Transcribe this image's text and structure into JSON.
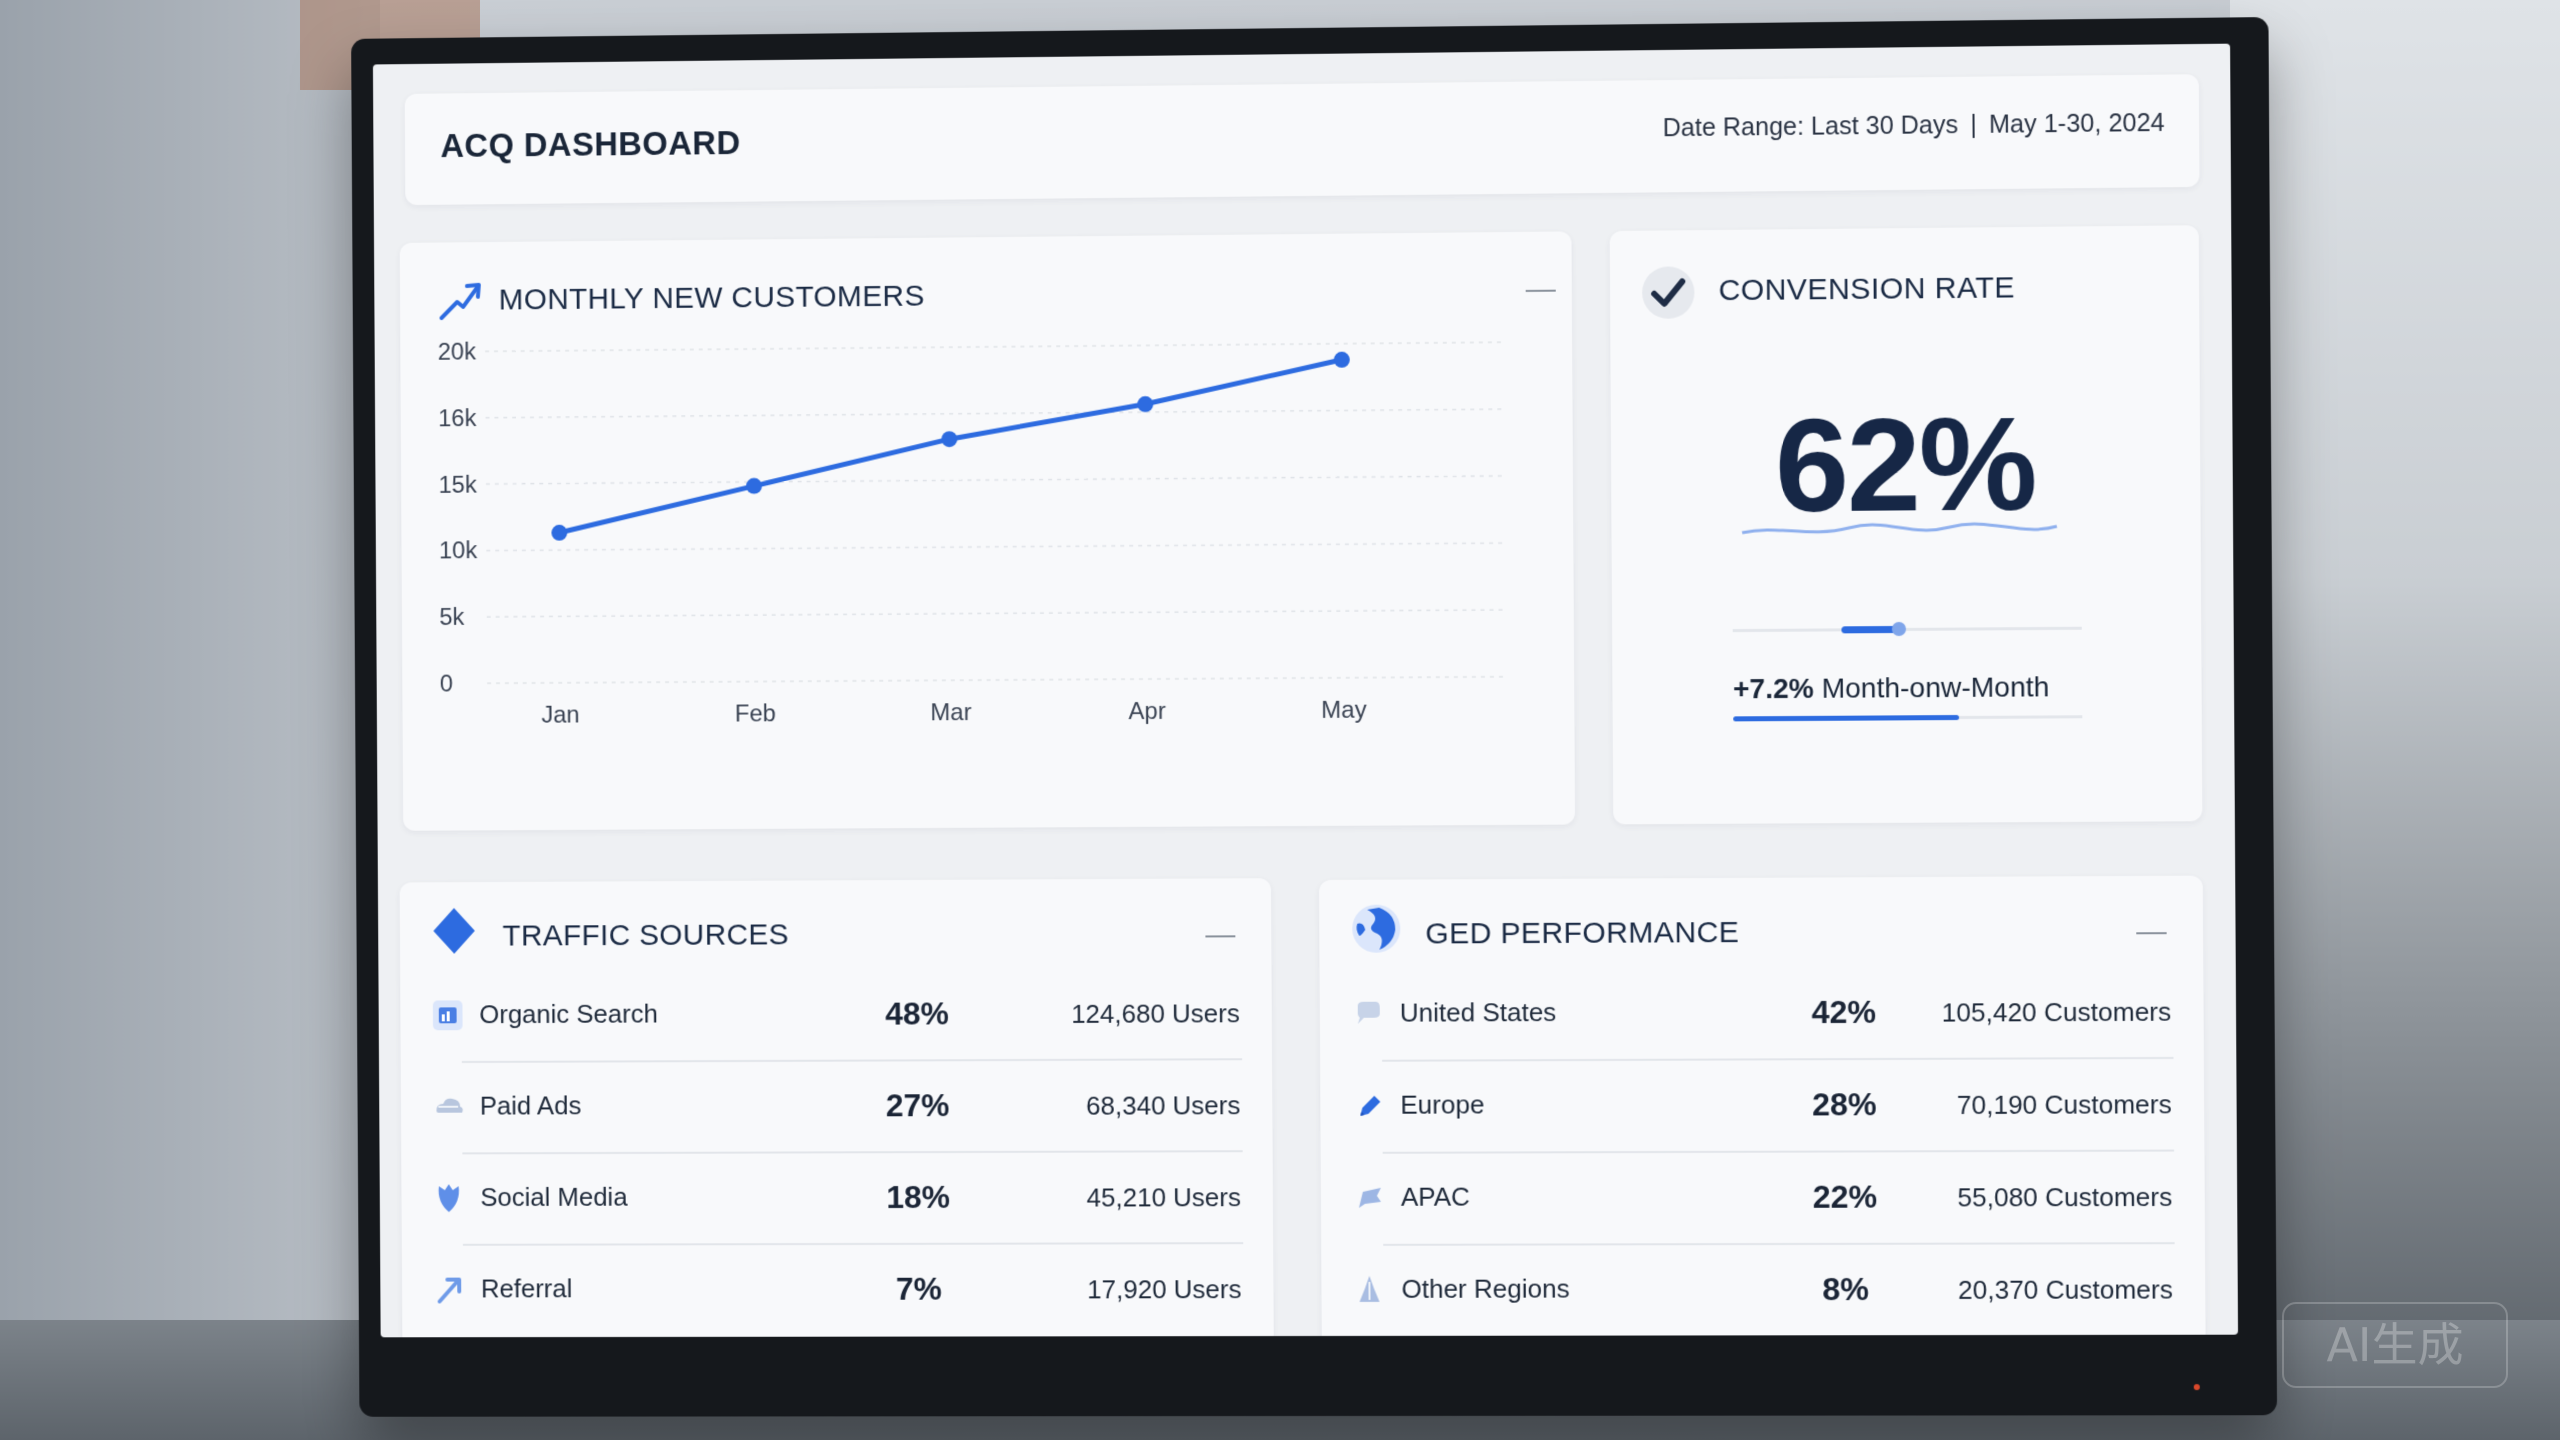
{
  "header": {
    "title": "ACQ DASHBOARD",
    "date_range_label": "Date Range: Last 30 Days",
    "date_range_separator": "|",
    "date_range_value": "May 1-30, 2024"
  },
  "monthly_customers": {
    "title": "MONTHLY NEW CUSTOMERS",
    "icon": "trend-arrow-icon"
  },
  "chart_data": {
    "type": "line",
    "title": "MONTHLY NEW CUSTOMERS",
    "categories": [
      "Jan",
      "Feb",
      "Mar",
      "Apr",
      "May"
    ],
    "y_tick_labels": [
      "20k",
      "16k",
      "15k",
      "10k",
      "5k",
      "0"
    ],
    "values": [
      11300,
      14700,
      18100,
      20600,
      23800
    ],
    "value_note_ylim": [
      0,
      25000
    ],
    "ylim": [
      0,
      25000
    ],
    "grid": true,
    "series": [
      {
        "name": "",
        "values": [
          11300,
          14700,
          18100,
          20600,
          23800
        ],
        "color": "#2d6be0"
      }
    ]
  },
  "conversion": {
    "title": "CONVENSION RATE",
    "icon": "checkmark-icon",
    "value": "62%",
    "change_value": "+7.2%",
    "change_label": "Month-onw-Month",
    "progress_fraction": 0.5
  },
  "traffic": {
    "title": "TRAFFIC SOURCES",
    "icon": "diamond-icon",
    "rows": [
      {
        "label": "Organic Search",
        "pct": "48%",
        "count": "124,680 Users",
        "icon": "chart-box-icon"
      },
      {
        "label": "Paid Ads",
        "pct": "27%",
        "count": "68,340 Users",
        "icon": "cloud-icon"
      },
      {
        "label": "Social Media",
        "pct": "18%",
        "count": "45,210 Users",
        "icon": "shield-icon"
      },
      {
        "label": "Referral",
        "pct": "7%",
        "count": "17,920 Users",
        "icon": "arrow-icon"
      }
    ]
  },
  "geo": {
    "title": "GED PERFORMANCE",
    "icon": "globe-icon",
    "rows": [
      {
        "label": "United States",
        "pct": "42%",
        "count": "105,420 Customers",
        "icon": "chat-bubble-icon"
      },
      {
        "label": "Europe",
        "pct": "28%",
        "count": "70,190 Customers",
        "icon": "pencil-icon"
      },
      {
        "label": "APAC",
        "pct": "22%",
        "count": "55,080 Customers",
        "icon": "flag-icon"
      },
      {
        "label": "Other Regions",
        "pct": "8%",
        "count": "20,370 Customers",
        "icon": "pin-icon"
      }
    ]
  },
  "watermark": "AI生成",
  "colors": {
    "accent": "#2d6be0",
    "text_dark": "#162746",
    "screen_bg": "#eef0f3",
    "card_bg": "#f8f9fb"
  }
}
